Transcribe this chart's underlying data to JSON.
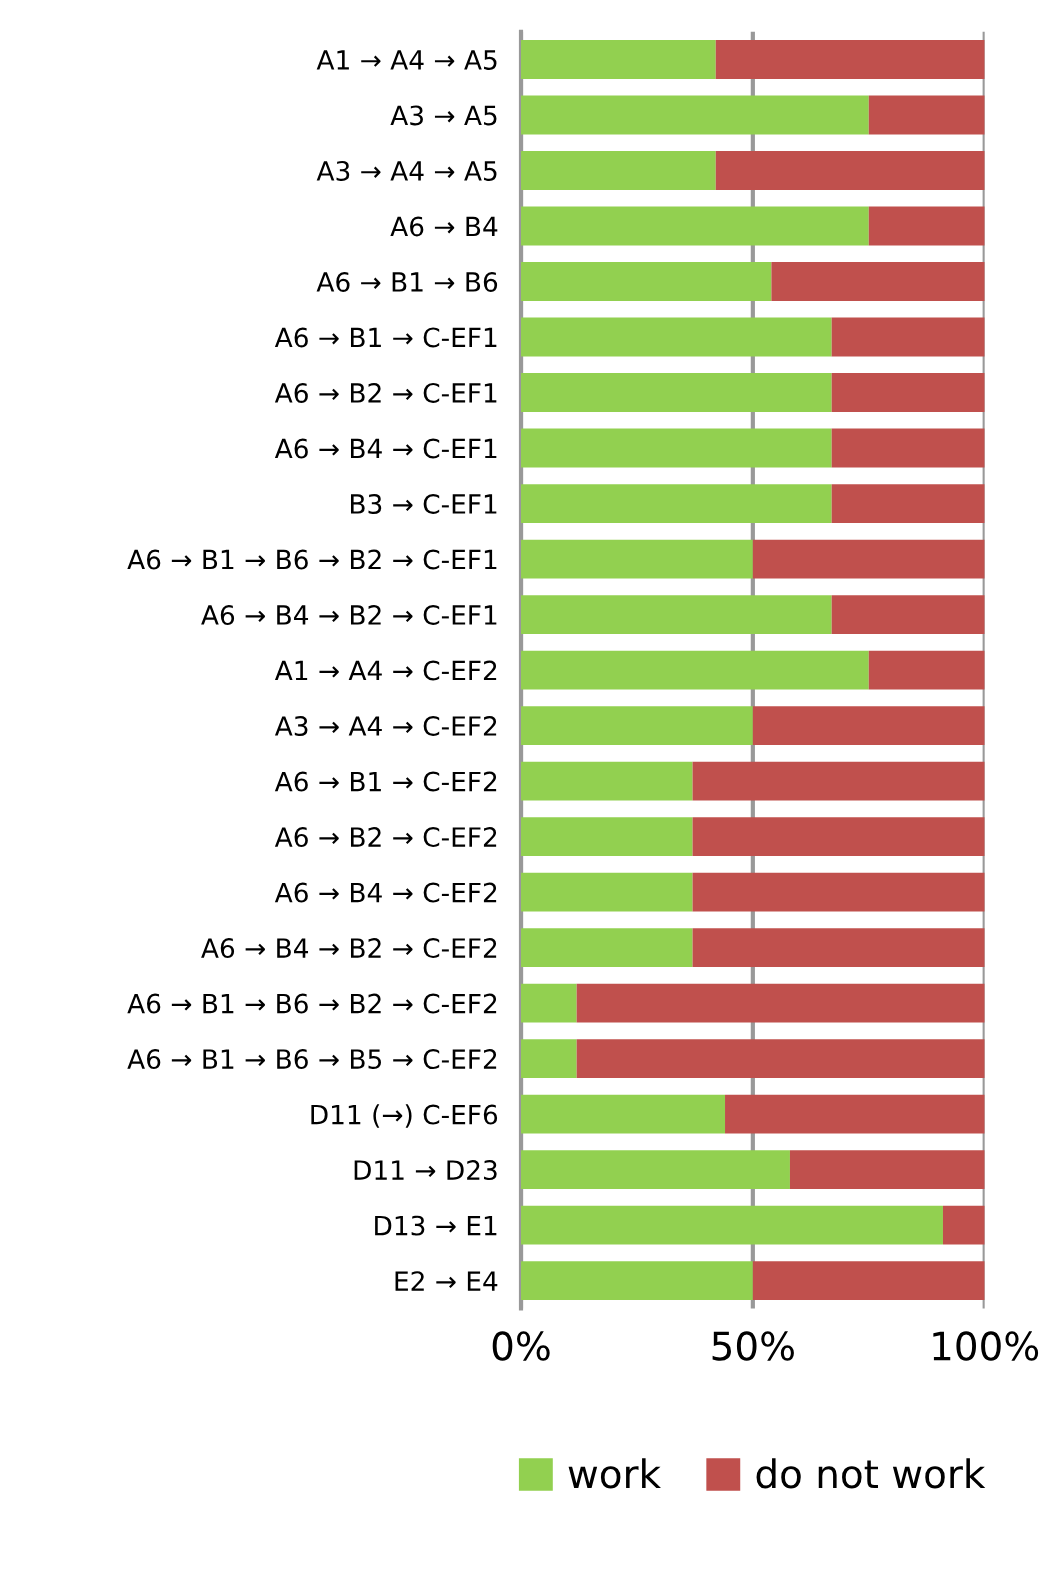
{
  "chart_data": {
    "type": "bar",
    "orientation": "horizontal",
    "stacked": true,
    "categories": [
      "A1 → A4 → A5",
      "A3 → A5",
      "A3 → A4 → A5",
      "A6 → B4",
      "A6 → B1 → B6",
      "A6 → B1 → C-EF1",
      "A6 → B2 → C-EF1",
      "A6 → B4 → C-EF1",
      "B3 → C-EF1",
      "A6 → B1 → B6 → B2 → C-EF1",
      "A6 → B4 → B2 → C-EF1",
      "A1 → A4 → C-EF2",
      "A3 → A4 → C-EF2",
      "A6 → B1 → C-EF2",
      "A6 → B2 → C-EF2",
      "A6 → B4 → C-EF2",
      "A6 → B4 → B2 → C-EF2",
      "A6 → B1 → B6 → B2 → C-EF2",
      "A6 → B1 → B6 → B5 → C-EF2",
      "D11 (→) C-EF6",
      "D11 → D23",
      "D13 → E1",
      "E2 → E4"
    ],
    "series": [
      {
        "name": "work",
        "color": "#92d050",
        "values": [
          42,
          75,
          42,
          75,
          54,
          67,
          67,
          67,
          67,
          50,
          67,
          75,
          50,
          37,
          37,
          37,
          37,
          12,
          12,
          44,
          58,
          91,
          50
        ]
      },
      {
        "name": "do not work",
        "color": "#c0504d",
        "values": [
          58,
          25,
          58,
          25,
          46,
          33,
          33,
          33,
          33,
          50,
          33,
          25,
          50,
          63,
          63,
          63,
          63,
          88,
          88,
          56,
          42,
          9,
          50
        ]
      }
    ],
    "xlim": [
      0,
      100
    ],
    "xticks": [
      {
        "value": 0,
        "label": "0%"
      },
      {
        "value": 50,
        "label": "50%"
      },
      {
        "value": 100,
        "label": "100%"
      }
    ],
    "grid": "x",
    "legend": "bottom"
  }
}
